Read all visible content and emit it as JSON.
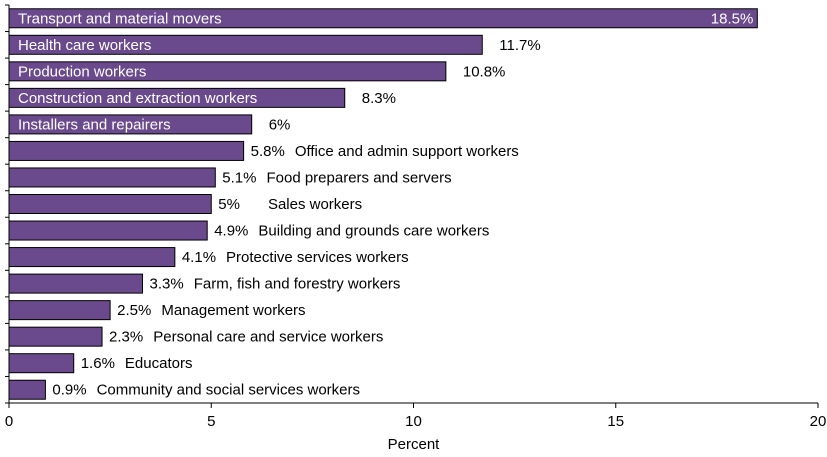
{
  "chart_data": {
    "type": "bar",
    "orientation": "horizontal",
    "title": "",
    "xlabel": "Percent",
    "ylabel": "",
    "xlim": [
      0,
      20
    ],
    "x_ticks": [
      "0",
      "5",
      "10",
      "15",
      "20"
    ],
    "bar_color": "#6a4a8c",
    "bar_edge_color": "#000000",
    "inside_label_color": "#ffffff",
    "outside_label_color": "#000000",
    "categories": [
      "Transport and material movers",
      "Health care workers",
      "Production workers",
      "Construction and extraction workers",
      "Installers and repairers",
      "Office and admin support workers",
      "Food preparers and servers",
      "Sales workers",
      "Building and grounds care workers",
      "Protective services workers",
      "Farm, fish and forestry workers",
      "Management workers",
      "Personal care and service workers",
      "Educators",
      "Community and social services workers"
    ],
    "values": [
      18.5,
      11.7,
      10.8,
      8.3,
      6,
      5.8,
      5.1,
      5,
      4.9,
      4.1,
      3.3,
      2.5,
      2.3,
      1.6,
      0.9
    ],
    "value_labels": [
      "18.5%",
      "11.7%",
      "10.8%",
      "8.3%",
      "6%",
      "5.8%",
      "5.1%",
      "5%",
      "4.9%",
      "4.1%",
      "3.3%",
      "2.5%",
      "2.3%",
      "1.6%",
      "0.9%"
    ],
    "category_label_inside_bar": [
      true,
      true,
      true,
      true,
      true,
      false,
      false,
      false,
      false,
      false,
      false,
      false,
      false,
      false,
      false
    ]
  }
}
